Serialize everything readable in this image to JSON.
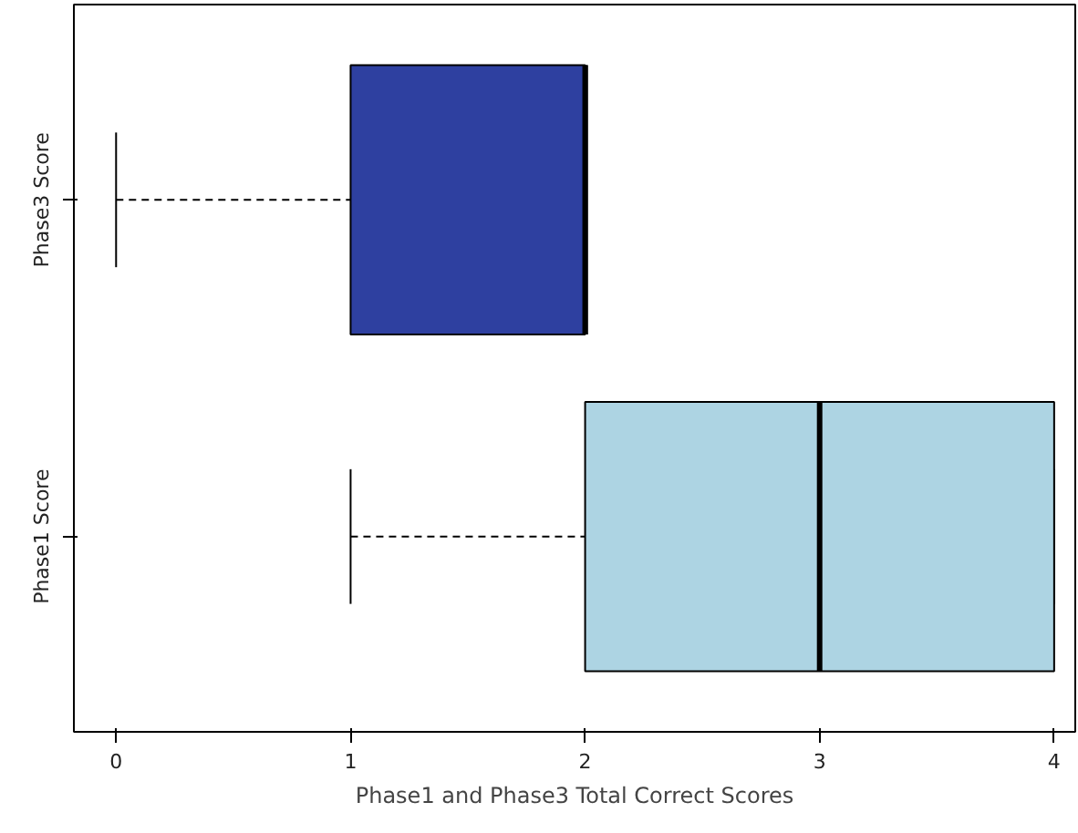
{
  "chart_data": {
    "type": "box",
    "orientation": "horizontal",
    "xlabel": "Phase1 and Phase3 Total Correct Scores",
    "categories": [
      "Phase3 Score",
      "Phase1 Score"
    ],
    "boxes": [
      {
        "low": 0,
        "q1": 1,
        "median": 2,
        "q3": 2,
        "high": 2
      },
      {
        "low": 1,
        "q1": 2,
        "median": 3,
        "q3": 4,
        "high": 4
      }
    ],
    "colors": [
      "#2e40a0",
      "#add4e3"
    ],
    "xlim": [
      -0.18,
      4.09
    ],
    "xticks": [
      0,
      1,
      2,
      3,
      4
    ]
  }
}
